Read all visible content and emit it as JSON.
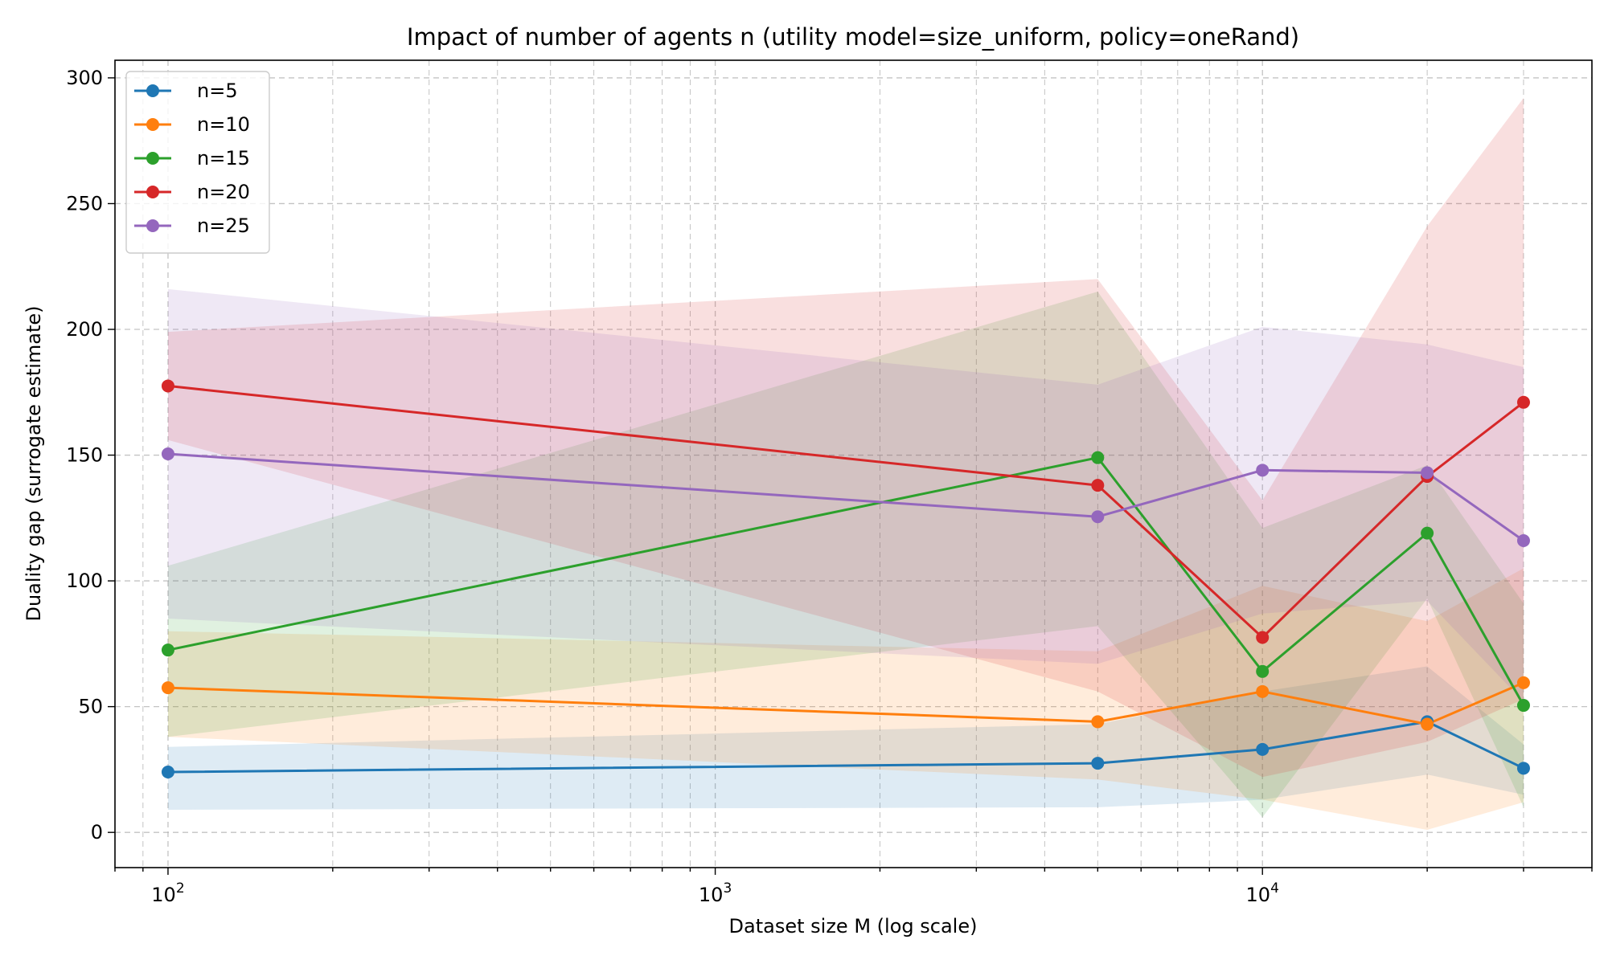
{
  "chart_data": {
    "type": "line",
    "title": "Impact of number of agents n (utility model=size_uniform, policy=oneRand)",
    "xlabel": "Dataset size M (log scale)",
    "ylabel": "Duality gap (surrogate estimate)",
    "xscale": "log",
    "xlim": [
      80,
      40000
    ],
    "ylim": [
      -14,
      307
    ],
    "grid": true,
    "legend_position": "top-left",
    "x": [
      100,
      5000,
      10000,
      20000,
      30000
    ],
    "x_tick_labels": [
      {
        "value": 100,
        "base": "10",
        "exp": "2"
      },
      {
        "value": 1000,
        "base": "10",
        "exp": "3"
      },
      {
        "value": 10000,
        "base": "10",
        "exp": "4"
      }
    ],
    "y_ticks": [
      0,
      50,
      100,
      150,
      200,
      250,
      300
    ],
    "y_tick_labels": [
      "0",
      "50",
      "100",
      "150",
      "200",
      "250",
      "300"
    ],
    "series": [
      {
        "name": "n=5",
        "color": "#1f77b4",
        "values": [
          24,
          27.5,
          33,
          44,
          25.5
        ],
        "lower": [
          9,
          10,
          13,
          23,
          15
        ],
        "upper": [
          34,
          43,
          56,
          66,
          35
        ]
      },
      {
        "name": "n=10",
        "color": "#ff7f0e",
        "values": [
          57.5,
          44,
          56,
          43,
          59.5
        ],
        "lower": [
          38,
          21,
          13,
          1,
          12
        ],
        "upper": [
          80,
          72,
          98,
          84,
          105
        ]
      },
      {
        "name": "n=15",
        "color": "#2ca02c",
        "values": [
          72.5,
          149,
          64,
          119,
          50.5
        ],
        "lower": [
          38,
          82,
          6,
          93,
          10
        ],
        "upper": [
          106,
          215,
          121,
          146,
          91
        ]
      },
      {
        "name": "n=20",
        "color": "#d62728",
        "values": [
          177.5,
          138,
          77.5,
          141.5,
          171
        ],
        "lower": [
          156,
          56,
          22,
          36,
          53
        ],
        "upper": [
          199,
          220,
          132,
          241,
          292
        ]
      },
      {
        "name": "n=25",
        "color": "#9467bd",
        "values": [
          150.5,
          125.5,
          144,
          143,
          116
        ],
        "lower": [
          85,
          67,
          87,
          92,
          52
        ],
        "upper": [
          216,
          178,
          201,
          194,
          185
        ]
      }
    ]
  }
}
